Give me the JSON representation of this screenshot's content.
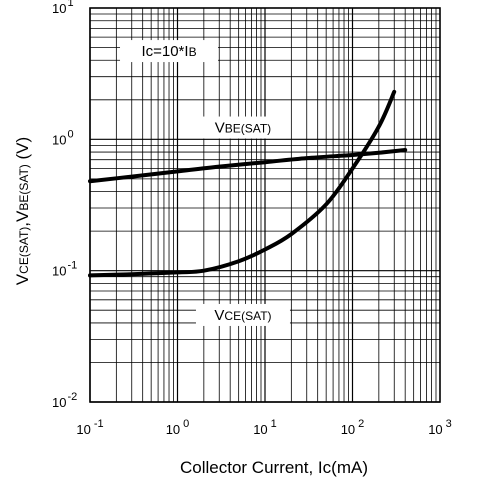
{
  "chart_data": {
    "type": "line",
    "xlabel": "Collector Current, Ic(mA)",
    "ylabel": {
      "v1": "V",
      "s1": "CE(SAT)",
      "comma": ",",
      "v2": "V",
      "s2": "BE(SAT)",
      "unit": " (V)"
    },
    "x_scale": "log",
    "y_scale": "log",
    "xlim": [
      0.1,
      1000
    ],
    "ylim": [
      0.01,
      10
    ],
    "grid": true,
    "x_ticks": [
      {
        "base": "10",
        "exp": "-1",
        "value": 0.1
      },
      {
        "base": "10",
        "exp": "0",
        "value": 1
      },
      {
        "base": "10",
        "exp": "1",
        "value": 10
      },
      {
        "base": "10",
        "exp": "2",
        "value": 100
      },
      {
        "base": "10",
        "exp": "3",
        "value": 1000
      }
    ],
    "y_ticks": [
      {
        "base": "10",
        "exp": "1",
        "value": 10
      },
      {
        "base": "10",
        "exp": "0",
        "value": 1
      },
      {
        "base": "10",
        "exp": "-1",
        "value": 0.1
      },
      {
        "base": "10",
        "exp": "-2",
        "value": 0.01
      }
    ],
    "annotations": {
      "condition": {
        "main": "Ic=10*I",
        "sub": "B"
      },
      "vbe": {
        "main": "V",
        "sub": "BE(SAT)"
      },
      "vce": {
        "main": "V",
        "sub": "CE(SAT)"
      }
    },
    "series": [
      {
        "x": [
          0.1,
          0.3,
          1,
          3,
          10,
          30,
          100,
          200,
          400
        ],
        "y": [
          0.48,
          0.52,
          0.57,
          0.62,
          0.67,
          0.72,
          0.76,
          0.79,
          0.83
        ]
      },
      {
        "x": [
          0.1,
          0.3,
          1,
          2,
          5,
          10,
          20,
          50,
          100,
          200,
          300
        ],
        "y": [
          0.092,
          0.094,
          0.097,
          0.1,
          0.118,
          0.145,
          0.19,
          0.32,
          0.6,
          1.25,
          2.3
        ]
      }
    ]
  }
}
